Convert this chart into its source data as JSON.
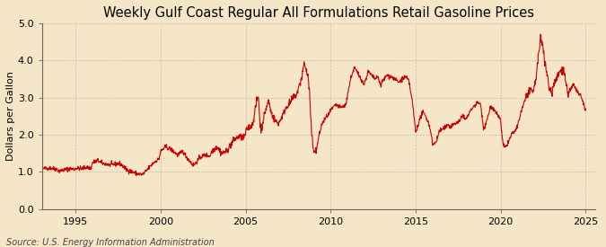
{
  "title": "Weekly Gulf Coast Regular All Formulations Retail Gasoline Prices",
  "ylabel": "Dollars per Gallon",
  "source": "Source: U.S. Energy Information Administration",
  "line_color": "#cc0000",
  "bg_color": "#f5e6c8",
  "plot_bg_color": "#f5e6c8",
  "grid_color": "#aaaaaa",
  "ylim": [
    0.0,
    5.0
  ],
  "yticks": [
    0.0,
    1.0,
    2.0,
    3.0,
    4.0,
    5.0
  ],
  "xticks": [
    1995,
    2000,
    2005,
    2010,
    2015,
    2020,
    2025
  ],
  "xlim_start": 1993.1,
  "xlim_end": 2025.3,
  "title_fontsize": 10.5,
  "label_fontsize": 8,
  "tick_fontsize": 8,
  "source_fontsize": 7
}
